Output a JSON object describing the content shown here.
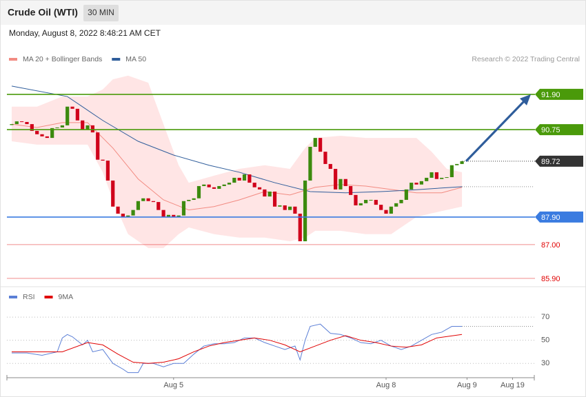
{
  "header": {
    "title": "Crude Oil (WTI)",
    "interval": "30 MIN"
  },
  "timestamp": "Monday, August 8, 2022 8:48:21 AM CET",
  "chart_data": [
    {
      "type": "candlestick",
      "source": "Research © 2022 Trading Central",
      "up_color": "#3c8a0e",
      "down_color": "#d0021b",
      "open": [
        90.9,
        90.93,
        91.02,
        91.0,
        90.93,
        90.71,
        90.6,
        90.53,
        90.48,
        90.8,
        90.82,
        90.89,
        91.5,
        91.43,
        91.05,
        90.75,
        90.89,
        90.66,
        89.77,
        89.74,
        89.09,
        88.24,
        88.01,
        87.9,
        87.95,
        88.13,
        88.42,
        88.51,
        88.42,
        88.39,
        88.13,
        87.9,
        87.97,
        87.9,
        87.95,
        88.42,
        88.46,
        88.51,
        88.91,
        88.96,
        88.87,
        88.82,
        88.91,
        88.96,
        89.02,
        89.18,
        89.09,
        89.29,
        89.02,
        88.87,
        88.8,
        88.57,
        88.73,
        88.24,
        88.28,
        88.13,
        88.24,
        88.01,
        87.11,
        89.09,
        90.19,
        90.48,
        90.03,
        89.63,
        89.47,
        88.8,
        89.14,
        88.91,
        88.62,
        88.28,
        88.35,
        88.46,
        88.46,
        88.3,
        88.13,
        88.01,
        88.24,
        88.35,
        88.46,
        88.8,
        89.02,
        88.96,
        89.07,
        89.18,
        89.36,
        89.14,
        89.18,
        89.2,
        89.59,
        89.63
      ],
      "close": [
        90.93,
        91.02,
        91.0,
        90.93,
        90.71,
        90.6,
        90.53,
        90.48,
        90.8,
        90.82,
        90.89,
        91.5,
        91.43,
        91.05,
        90.75,
        90.89,
        90.66,
        89.77,
        89.74,
        89.09,
        88.24,
        88.01,
        87.9,
        87.95,
        88.13,
        88.42,
        88.51,
        88.42,
        88.39,
        88.13,
        87.9,
        87.97,
        87.9,
        87.95,
        88.42,
        88.46,
        88.51,
        88.91,
        88.96,
        88.87,
        88.82,
        88.91,
        88.96,
        89.02,
        89.18,
        89.09,
        89.29,
        89.02,
        88.87,
        88.8,
        88.57,
        88.73,
        88.24,
        88.28,
        88.13,
        88.24,
        88.01,
        87.11,
        89.09,
        90.19,
        90.48,
        90.03,
        89.63,
        89.47,
        88.8,
        89.14,
        88.91,
        88.62,
        88.28,
        88.35,
        88.46,
        88.46,
        88.3,
        88.13,
        88.01,
        88.24,
        88.35,
        88.46,
        88.8,
        89.02,
        88.96,
        89.07,
        89.18,
        89.36,
        89.14,
        89.18,
        89.2,
        89.59,
        89.63,
        89.72
      ],
      "bands": {
        "color": "#ffdcdc",
        "x": [
          0,
          5,
          10,
          15,
          18,
          20,
          23,
          27,
          30,
          33,
          35,
          40,
          45,
          50,
          55,
          58,
          60,
          65,
          70,
          75,
          80,
          83,
          86,
          89
        ],
        "upper": [
          91.5,
          91.5,
          91.83,
          91.83,
          92.06,
          92.39,
          92.51,
          92.28,
          90.93,
          89.59,
          89.02,
          89.25,
          89.47,
          89.59,
          89.47,
          90.15,
          90.48,
          90.55,
          90.48,
          90.48,
          90.48,
          90.03,
          89.47,
          89.36
        ],
        "lower": [
          90.37,
          90.26,
          90.26,
          90.26,
          89.36,
          88.46,
          87.34,
          86.89,
          86.89,
          87.34,
          87.56,
          87.34,
          87.23,
          87.23,
          87.11,
          87.23,
          87.45,
          87.45,
          87.34,
          87.34,
          87.9,
          88.02,
          88.13,
          88.24
        ]
      },
      "series": [
        {
          "name": "MA 20 + Bollinger Bands",
          "color": "#f28b82",
          "x": [
            0,
            5,
            10,
            15,
            20,
            25,
            30,
            35,
            40,
            45,
            50,
            55,
            60,
            65,
            70,
            75,
            80,
            85,
            89
          ],
          "values": [
            90.93,
            90.82,
            90.98,
            90.98,
            90.15,
            89.14,
            88.46,
            88.13,
            88.24,
            88.46,
            88.73,
            88.62,
            88.87,
            88.96,
            88.91,
            88.8,
            88.69,
            88.69,
            88.87
          ]
        },
        {
          "name": "MA 50",
          "color": "#2f5d9b",
          "x": [
            0,
            11,
            18,
            25,
            32,
            39,
            45,
            52,
            59,
            66,
            73,
            79,
            89
          ],
          "values": [
            92.17,
            91.83,
            91.05,
            90.37,
            89.92,
            89.59,
            89.36,
            89.02,
            88.73,
            88.69,
            88.73,
            88.78,
            88.89
          ]
        }
      ],
      "levels": [
        {
          "value": 91.9,
          "label": "91.90",
          "color": "#4a9a0a",
          "style": "box"
        },
        {
          "value": 90.75,
          "label": "90.75",
          "color": "#4a9a0a",
          "style": "box"
        },
        {
          "value": 89.72,
          "label": "89.72",
          "color": "#333333",
          "style": "dotted"
        },
        {
          "value": 87.9,
          "label": "87.90",
          "color": "#3a7be0",
          "style": "box"
        },
        {
          "value": 87.0,
          "label": "87.00",
          "color": "#e00000",
          "style": "text"
        },
        {
          "value": 85.9,
          "label": "85.90",
          "color": "#e00000",
          "style": "text"
        }
      ],
      "xlim": [
        -0.95,
        103.3
      ],
      "ylim": [
        85.65,
        92.73
      ]
    },
    {
      "type": "line",
      "series": [
        {
          "name": "RSI",
          "color": "#5b7fd6",
          "x": [
            0,
            3,
            6,
            9,
            10,
            11,
            12,
            14,
            15,
            16,
            18,
            20,
            22,
            23,
            25,
            26,
            28,
            30,
            32,
            34,
            36,
            38,
            40,
            42,
            44,
            46,
            48,
            50,
            52,
            54,
            56,
            57,
            58,
            59,
            61,
            63,
            65,
            67,
            69,
            71,
            73,
            75,
            77,
            79,
            81,
            83,
            85,
            87,
            89
          ],
          "values": [
            39,
            39,
            37,
            40,
            52,
            55,
            53,
            46,
            50,
            40,
            42,
            30,
            25,
            22,
            22,
            30,
            30,
            27,
            30,
            30,
            38,
            45,
            47,
            47,
            48,
            52,
            52,
            48,
            45,
            42,
            45,
            33,
            50,
            62,
            64,
            56,
            55,
            52,
            48,
            47,
            50,
            45,
            42,
            45,
            50,
            55,
            57,
            62,
            62
          ]
        },
        {
          "name": "9MA",
          "color": "#e00000",
          "x": [
            0,
            5,
            10,
            15,
            18,
            21,
            24,
            27,
            30,
            33,
            36,
            39,
            42,
            45,
            48,
            51,
            54,
            57,
            60,
            63,
            66,
            69,
            72,
            75,
            78,
            81,
            84,
            89
          ],
          "values": [
            40,
            40,
            40,
            48,
            46,
            38,
            31,
            30,
            31,
            34,
            40,
            45,
            48,
            50,
            52,
            50,
            46,
            40,
            45,
            50,
            54,
            50,
            48,
            45,
            44,
            46,
            52,
            55
          ]
        }
      ],
      "xlim": [
        -0.95,
        103.3
      ],
      "ylim": [
        20,
        82
      ],
      "yticks": [
        30,
        50,
        70
      ],
      "grid": true,
      "xticks": [
        {
          "value": 32,
          "label": "Aug 5"
        },
        {
          "value": 74,
          "label": "Aug 8"
        },
        {
          "value": 90,
          "label": "Aug 9"
        },
        {
          "value": 99,
          "label": "Aug 19"
        }
      ]
    }
  ]
}
